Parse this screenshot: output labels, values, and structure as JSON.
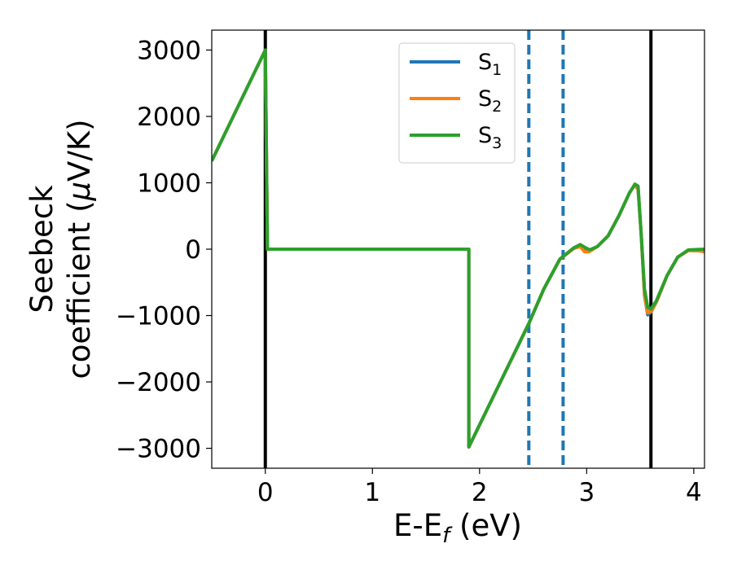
{
  "chart_data": {
    "type": "line",
    "xlabel": {
      "main": "E-E",
      "sub": "f",
      "unit": " (eV)"
    },
    "ylabel": {
      "line1": "Seebeck",
      "line2": "coefficient  (",
      "mu": "μ",
      "unit": "V/K)"
    },
    "xlim": [
      -0.5,
      4.1
    ],
    "ylim": [
      -3300,
      3300
    ],
    "xticks": [
      0,
      1,
      2,
      3,
      4
    ],
    "xtick_labels": [
      "0",
      "1",
      "2",
      "3",
      "4"
    ],
    "yticks": [
      3000,
      2000,
      1000,
      0,
      -1000,
      -2000,
      -3000
    ],
    "ytick_labels": [
      "3000",
      "2000",
      "1000",
      "0",
      "−1000",
      "−2000",
      "−3000"
    ],
    "grid": false,
    "legend_position": "top-center",
    "vlines_solid": [
      0.0,
      3.6
    ],
    "vlines_dashed": [
      2.46,
      2.78
    ],
    "series": [
      {
        "name": "S",
        "sub": "1",
        "color": "#1f77b4",
        "points": [
          [
            -0.5,
            1330
          ],
          [
            0.0,
            3000
          ],
          [
            0.02,
            0
          ],
          [
            1.9,
            0
          ],
          [
            1.9,
            -2980
          ],
          [
            2.46,
            -1120
          ],
          [
            2.6,
            -600
          ],
          [
            2.75,
            -150
          ],
          [
            2.88,
            20
          ],
          [
            2.94,
            60
          ],
          [
            2.99,
            10
          ],
          [
            3.03,
            -15
          ],
          [
            3.1,
            40
          ],
          [
            3.2,
            200
          ],
          [
            3.3,
            500
          ],
          [
            3.4,
            850
          ],
          [
            3.45,
            970
          ],
          [
            3.48,
            900
          ],
          [
            3.51,
            200
          ],
          [
            3.54,
            -700
          ],
          [
            3.57,
            -990
          ],
          [
            3.6,
            -950
          ],
          [
            3.65,
            -800
          ],
          [
            3.75,
            -400
          ],
          [
            3.85,
            -120
          ],
          [
            3.95,
            -15
          ],
          [
            4.1,
            -10
          ]
        ]
      },
      {
        "name": "S",
        "sub": "2",
        "color": "#ff7f0e",
        "points": [
          [
            -0.5,
            1330
          ],
          [
            0.0,
            3000
          ],
          [
            0.02,
            0
          ],
          [
            1.9,
            0
          ],
          [
            1.9,
            -2980
          ],
          [
            2.46,
            -1120
          ],
          [
            2.6,
            -600
          ],
          [
            2.75,
            -150
          ],
          [
            2.88,
            10
          ],
          [
            2.94,
            40
          ],
          [
            2.98,
            -40
          ],
          [
            3.02,
            -40
          ],
          [
            3.1,
            40
          ],
          [
            3.2,
            200
          ],
          [
            3.3,
            500
          ],
          [
            3.4,
            850
          ],
          [
            3.45,
            970
          ],
          [
            3.48,
            900
          ],
          [
            3.51,
            200
          ],
          [
            3.54,
            -700
          ],
          [
            3.57,
            -960
          ],
          [
            3.6,
            -940
          ],
          [
            3.65,
            -800
          ],
          [
            3.75,
            -400
          ],
          [
            3.85,
            -120
          ],
          [
            3.95,
            -20
          ],
          [
            4.05,
            -25
          ],
          [
            4.1,
            -40
          ]
        ]
      },
      {
        "name": "S",
        "sub": "3",
        "color": "#2ca02c",
        "points": [
          [
            -0.5,
            1330
          ],
          [
            0.0,
            3000
          ],
          [
            0.02,
            0
          ],
          [
            1.9,
            0
          ],
          [
            1.9,
            -2980
          ],
          [
            2.46,
            -1120
          ],
          [
            2.6,
            -600
          ],
          [
            2.75,
            -150
          ],
          [
            2.88,
            20
          ],
          [
            2.94,
            70
          ],
          [
            2.99,
            20
          ],
          [
            3.03,
            -10
          ],
          [
            3.1,
            40
          ],
          [
            3.2,
            200
          ],
          [
            3.3,
            500
          ],
          [
            3.4,
            850
          ],
          [
            3.45,
            980
          ],
          [
            3.48,
            950
          ],
          [
            3.51,
            200
          ],
          [
            3.54,
            -600
          ],
          [
            3.57,
            -880
          ],
          [
            3.6,
            -900
          ],
          [
            3.65,
            -780
          ],
          [
            3.75,
            -400
          ],
          [
            3.85,
            -120
          ],
          [
            3.95,
            -10
          ],
          [
            4.1,
            0
          ]
        ]
      }
    ]
  }
}
